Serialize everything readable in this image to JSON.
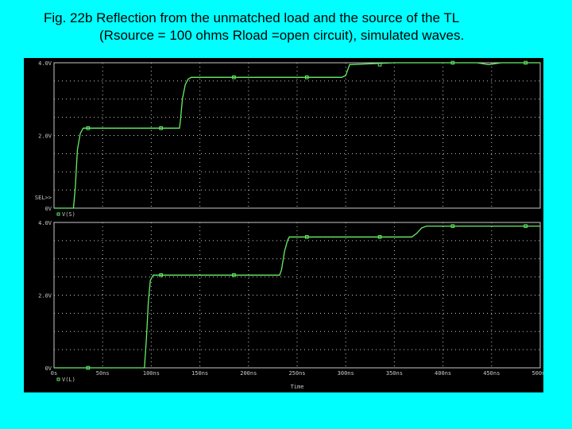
{
  "caption": {
    "line1": "Fig. 22b Reflection from the unmatched load and the source of the TL",
    "line2": "(Rsource = 100 ohms Rload =open circuit), simulated waves."
  },
  "colors": {
    "background": "#00ffff",
    "plot_bg": "#000000",
    "trace": "#66ee66",
    "grid": "#c8c8c8",
    "text": "#c8c8c8"
  },
  "chart_data": [
    {
      "type": "line",
      "title": "",
      "trace_label": "V(S)",
      "sel_label": "SEL>>",
      "xlim": [
        0,
        500
      ],
      "ylim": [
        0,
        4.0
      ],
      "y_ticks": [
        {
          "value": 4.0,
          "label": "4.0V"
        },
        {
          "value": 2.0,
          "label": "2.0V"
        },
        {
          "value": 0,
          "label": "0V"
        }
      ],
      "grid": true,
      "series": [
        {
          "x": [
            0,
            20,
            22,
            24,
            27,
            29,
            30,
            40,
            60,
            80,
            100,
            116,
            128,
            129,
            130,
            132,
            135,
            138,
            141,
            150,
            200,
            250,
            266,
            282,
            296,
            300,
            304,
            350,
            382,
            397,
            409,
            435,
            447,
            460,
            490,
            500
          ],
          "y": [
            0,
            0,
            0.6,
            1.6,
            2.05,
            2.15,
            2.2,
            2.2,
            2.2,
            2.2,
            2.2,
            2.2,
            2.2,
            2.2,
            2.4,
            3.0,
            3.4,
            3.55,
            3.6,
            3.6,
            3.6,
            3.6,
            3.6,
            3.6,
            3.6,
            3.65,
            3.95,
            4.0,
            4.0,
            4.0,
            4.0,
            4.0,
            3.95,
            4.0,
            4.0,
            4.0
          ]
        }
      ]
    },
    {
      "type": "line",
      "title": "",
      "trace_label": "V(L)",
      "xlabel": "Time",
      "xlim": [
        0,
        500
      ],
      "ylim": [
        0,
        4.0
      ],
      "x_ticks": [
        {
          "value": 0,
          "label": "0s"
        },
        {
          "value": 50,
          "label": "50ns"
        },
        {
          "value": 100,
          "label": "100ns"
        },
        {
          "value": 150,
          "label": "150ns"
        },
        {
          "value": 200,
          "label": "200ns"
        },
        {
          "value": 250,
          "label": "250ns"
        },
        {
          "value": 300,
          "label": "300ns"
        },
        {
          "value": 350,
          "label": "350ns"
        },
        {
          "value": 400,
          "label": "400ns"
        },
        {
          "value": 450,
          "label": "450ns"
        },
        {
          "value": 500,
          "label": "500ns"
        }
      ],
      "y_ticks": [
        {
          "value": 4.0,
          "label": "4.0V"
        },
        {
          "value": 2.0,
          "label": "2.0V"
        },
        {
          "value": 0,
          "label": "0V"
        }
      ],
      "grid": true,
      "series": [
        {
          "x": [
            0,
            93,
            95,
            97,
            99,
            101,
            102,
            110,
            130,
            160,
            200,
            220,
            232,
            234,
            237,
            240,
            242,
            250,
            255,
            300,
            320,
            340,
            368,
            373,
            378,
            383,
            390,
            400,
            420,
            460,
            500
          ],
          "y": [
            0,
            0,
            0.8,
            1.8,
            2.4,
            2.5,
            2.55,
            2.55,
            2.55,
            2.55,
            2.55,
            2.55,
            2.55,
            2.7,
            3.2,
            3.5,
            3.6,
            3.6,
            3.6,
            3.6,
            3.6,
            3.6,
            3.6,
            3.7,
            3.85,
            3.9,
            3.9,
            3.9,
            3.9,
            3.9,
            3.9
          ]
        }
      ]
    }
  ]
}
